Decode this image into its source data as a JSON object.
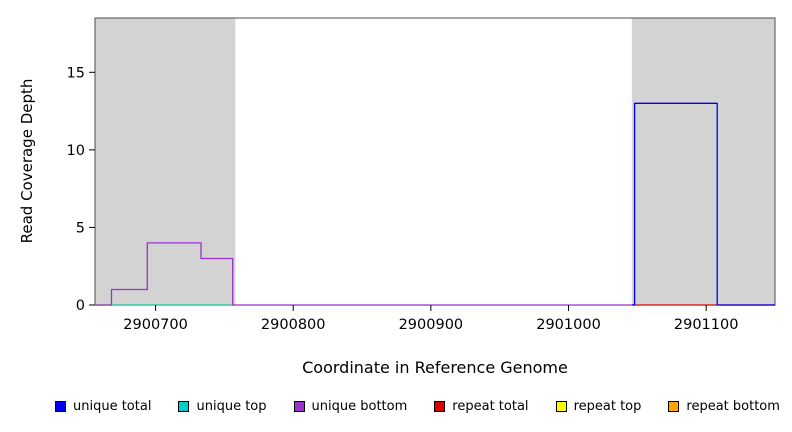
{
  "chart_data": {
    "type": "step-line",
    "title": "",
    "xlabel": "Coordinate in Reference Genome",
    "ylabel": "Read Coverage Depth",
    "xlim": [
      2900656,
      2901150
    ],
    "ylim": [
      0,
      18.5
    ],
    "x_ticks": [
      2900700,
      2900800,
      2900900,
      2901000,
      2901100
    ],
    "y_ticks": [
      0,
      5,
      10,
      15
    ],
    "grid": false,
    "legend_position": "bottom",
    "frame_color": "#4d4d4d",
    "shaded_color": "#d3d3d3",
    "shaded_regions": [
      {
        "name": "left-repeat-region",
        "x0": 2900656,
        "x1": 2900758
      },
      {
        "name": "right-repeat-region",
        "x0": 2901046,
        "x1": 2901150
      }
    ],
    "series": [
      {
        "name": "repeat bottom",
        "color": "#FFA500",
        "points": [
          [
            2900656,
            0
          ],
          [
            2900758,
            0
          ]
        ]
      },
      {
        "name": "repeat top",
        "color": "#FFFF00",
        "points": [
          [
            2900656,
            0
          ],
          [
            2900758,
            0
          ]
        ]
      },
      {
        "name": "unique top",
        "color": "#00CCCC",
        "points": [
          [
            2900656,
            0
          ],
          [
            2900758,
            0
          ]
        ]
      },
      {
        "name": "repeat total",
        "color": "#DD0000",
        "points": [
          [
            2901046,
            0
          ],
          [
            2901150,
            0
          ]
        ]
      },
      {
        "name": "unique bottom",
        "color": "#9932CC",
        "points": [
          [
            2900656,
            0
          ],
          [
            2900668,
            0
          ],
          [
            2900668,
            1
          ],
          [
            2900694,
            1
          ],
          [
            2900694,
            4
          ],
          [
            2900733,
            4
          ],
          [
            2900733,
            3
          ],
          [
            2900756,
            3
          ],
          [
            2900756,
            0
          ],
          [
            2901046,
            0
          ]
        ]
      },
      {
        "name": "unique total",
        "color": "#0000EE",
        "points": [
          [
            2901046,
            0
          ],
          [
            2901048,
            0
          ],
          [
            2901048,
            13
          ],
          [
            2901108,
            13
          ],
          [
            2901108,
            0
          ],
          [
            2901150,
            0
          ]
        ]
      }
    ],
    "legend": [
      {
        "label": "unique total",
        "color": "#0000EE"
      },
      {
        "label": "unique top",
        "color": "#00CCCC"
      },
      {
        "label": "unique bottom",
        "color": "#9932CC"
      },
      {
        "label": "repeat total",
        "color": "#DD0000"
      },
      {
        "label": "repeat top",
        "color": "#FFFF00"
      },
      {
        "label": "repeat bottom",
        "color": "#FFA500"
      }
    ]
  }
}
